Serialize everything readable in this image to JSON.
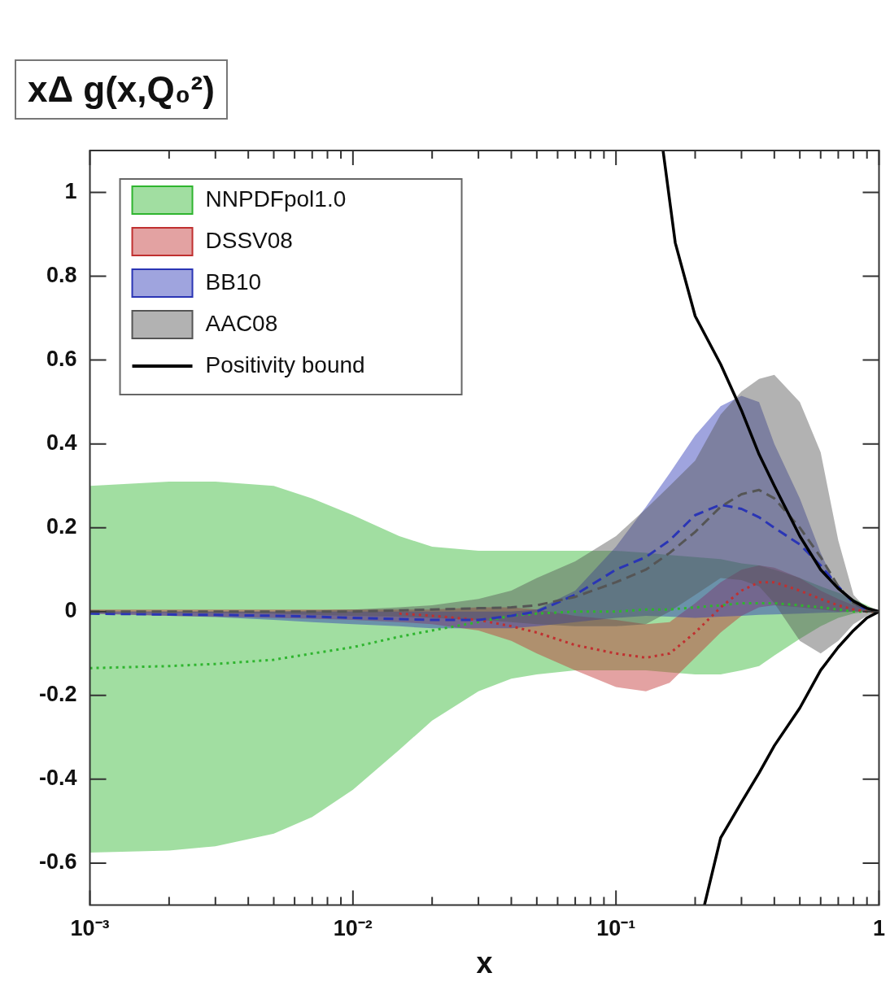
{
  "chart_data": {
    "type": "line",
    "title": "xΔ g(x,Q₀²)",
    "xlabel": "x",
    "log": "x",
    "legend": "top left",
    "marker": "none",
    "grid": false,
    "x": [
      0.001,
      0.002,
      0.003,
      0.005,
      0.007,
      0.01,
      0.015,
      0.02,
      0.03,
      0.04,
      0.05,
      0.07,
      0.1,
      0.13,
      0.16,
      0.2,
      0.25,
      0.3,
      0.35,
      0.4,
      0.5,
      0.6,
      0.7,
      0.8,
      0.9,
      1
    ],
    "xlim": [
      0.001,
      1
    ],
    "ylim": [
      -0.7,
      1.1
    ],
    "xticks": [
      {
        "value": 0.001,
        "label": "10⁻³"
      },
      {
        "value": 0.002,
        "label": null
      },
      {
        "value": 0.003,
        "label": null
      },
      {
        "value": 0.004,
        "label": null
      },
      {
        "value": 0.005,
        "label": null
      },
      {
        "value": 0.006,
        "label": null
      },
      {
        "value": 0.007,
        "label": null
      },
      {
        "value": 0.008,
        "label": null
      },
      {
        "value": 0.009,
        "label": null
      },
      {
        "value": 0.01,
        "label": "10⁻²"
      },
      {
        "value": 0.02,
        "label": null
      },
      {
        "value": 0.03,
        "label": null
      },
      {
        "value": 0.04,
        "label": null
      },
      {
        "value": 0.05,
        "label": null
      },
      {
        "value": 0.06,
        "label": null
      },
      {
        "value": 0.07,
        "label": null
      },
      {
        "value": 0.08,
        "label": null
      },
      {
        "value": 0.09,
        "label": null
      },
      {
        "value": 0.1,
        "label": "10⁻¹"
      },
      {
        "value": 0.2,
        "label": null
      },
      {
        "value": 0.3,
        "label": null
      },
      {
        "value": 0.4,
        "label": null
      },
      {
        "value": 0.5,
        "label": null
      },
      {
        "value": 0.6,
        "label": null
      },
      {
        "value": 0.7,
        "label": null
      },
      {
        "value": 0.8,
        "label": null
      },
      {
        "value": 0.9,
        "label": null
      },
      1
    ],
    "yticks": [
      -0.6,
      -0.4,
      -0.2,
      0,
      0.2,
      0.4,
      0.6,
      0.8,
      1
    ],
    "series": [
      {
        "name": "NNPDFpol1.0",
        "color": "#2fb52f",
        "line_style": "dotted",
        "values": [
          -0.135,
          -0.13,
          -0.125,
          -0.115,
          -0.1,
          -0.085,
          -0.06,
          -0.045,
          -0.025,
          -0.01,
          -0.005,
          0,
          0,
          0.005,
          0.005,
          0.01,
          0.015,
          0.02,
          0.02,
          0.02,
          0.015,
          0.01,
          0.005,
          0,
          0,
          0
        ],
        "upper": [
          0.3,
          0.31,
          0.31,
          0.3,
          0.27,
          0.23,
          0.18,
          0.155,
          0.145,
          0.145,
          0.145,
          0.145,
          0.145,
          0.14,
          0.135,
          0.13,
          0.125,
          0.115,
          0.11,
          0.1,
          0.08,
          0.06,
          0.045,
          0.03,
          0.015,
          0
        ],
        "lower": [
          -0.575,
          -0.57,
          -0.56,
          -0.53,
          -0.49,
          -0.425,
          -0.33,
          -0.26,
          -0.19,
          -0.16,
          -0.15,
          -0.14,
          -0.14,
          -0.14,
          -0.145,
          -0.15,
          -0.15,
          -0.14,
          -0.13,
          -0.105,
          -0.065,
          -0.035,
          -0.015,
          -0.005,
          0,
          0
        ]
      },
      {
        "name": "DSSV08",
        "color": "#c03030",
        "line_style": "dotted",
        "values": [
          null,
          null,
          null,
          null,
          null,
          null,
          -0.005,
          -0.01,
          -0.02,
          -0.035,
          -0.05,
          -0.08,
          -0.1,
          -0.11,
          -0.1,
          -0.05,
          0.01,
          0.05,
          0.07,
          0.07,
          0.05,
          0.03,
          0.015,
          0.005,
          0,
          0
        ],
        "upper": [
          0.005,
          0.005,
          0.005,
          0.005,
          0.005,
          0.005,
          0.005,
          0.005,
          0.01,
          0.01,
          0.005,
          -0.01,
          -0.02,
          -0.03,
          -0.025,
          0.02,
          0.07,
          0.1,
          0.11,
          0.105,
          0.08,
          0.05,
          0.03,
          0.015,
          0.005,
          0
        ],
        "lower": [
          -0.005,
          -0.01,
          -0.012,
          -0.015,
          -0.017,
          -0.02,
          -0.025,
          -0.03,
          -0.045,
          -0.07,
          -0.1,
          -0.14,
          -0.18,
          -0.19,
          -0.17,
          -0.11,
          -0.05,
          -0.01,
          0.01,
          0.015,
          0.01,
          0.005,
          0,
          0,
          0,
          0
        ]
      },
      {
        "name": "BB10",
        "color": "#2a35b5",
        "line_style": "dashed",
        "values": [
          -0.005,
          -0.007,
          -0.008,
          -0.01,
          -0.012,
          -0.015,
          -0.018,
          -0.02,
          -0.02,
          -0.01,
          0,
          0.04,
          0.1,
          0.13,
          0.17,
          0.23,
          0.255,
          0.245,
          0.225,
          0.2,
          0.16,
          0.11,
          0.06,
          0.02,
          0.005,
          0
        ],
        "upper": [
          0,
          0,
          0,
          0,
          0,
          0,
          0,
          0,
          0,
          0,
          0.005,
          0.05,
          0.155,
          0.25,
          0.33,
          0.42,
          0.49,
          0.515,
          0.5,
          0.4,
          0.27,
          0.14,
          0.05,
          0.02,
          0.005,
          0
        ],
        "lower": [
          -0.005,
          -0.01,
          -0.013,
          -0.02,
          -0.025,
          -0.03,
          -0.035,
          -0.04,
          -0.04,
          -0.04,
          -0.035,
          -0.025,
          -0.015,
          -0.01,
          -0.012,
          -0.015,
          -0.012,
          -0.01,
          -0.008,
          -0.007,
          -0.005,
          -0.003,
          -0.002,
          0,
          0,
          0
        ]
      },
      {
        "name": "AAC08",
        "color": "#555555",
        "line_style": "dashed",
        "values": [
          0,
          0,
          0,
          0,
          0,
          0,
          0.003,
          0.005,
          0.008,
          0.01,
          0.015,
          0.035,
          0.07,
          0.1,
          0.14,
          0.19,
          0.25,
          0.28,
          0.29,
          0.27,
          0.2,
          0.13,
          0.06,
          0.02,
          0.005,
          0
        ],
        "upper": [
          0,
          0,
          0,
          0,
          0.003,
          0.005,
          0.01,
          0.015,
          0.03,
          0.05,
          0.08,
          0.12,
          0.18,
          0.245,
          0.3,
          0.36,
          0.47,
          0.525,
          0.555,
          0.565,
          0.5,
          0.38,
          0.17,
          0.04,
          0.005,
          0
        ],
        "lower": [
          0,
          -0.002,
          -0.003,
          -0.005,
          -0.008,
          -0.01,
          -0.012,
          -0.015,
          -0.02,
          -0.025,
          -0.03,
          -0.035,
          -0.035,
          -0.03,
          0,
          0.04,
          0.08,
          0.075,
          0.06,
          0.02,
          -0.07,
          -0.1,
          -0.07,
          -0.03,
          -0.01,
          0
        ]
      },
      {
        "name": "Positivity bound",
        "color": "#000000",
        "line_style": "solid",
        "x": [
          0.151,
          0.168,
          0.2,
          0.25,
          0.3,
          0.35,
          0.4,
          0.5,
          0.6,
          0.7,
          0.8,
          0.9,
          1
        ],
        "values": [
          1.1,
          0.88,
          0.705,
          0.59,
          0.48,
          0.375,
          0.3,
          0.18,
          0.1,
          0.055,
          0.025,
          0.008,
          0
        ]
      },
      {
        "color": "#000000",
        "line_style": "solid",
        "x": [
          0.217,
          0.25,
          0.3,
          0.35,
          0.4,
          0.5,
          0.6,
          0.7,
          0.8,
          0.9,
          1
        ],
        "values": [
          -0.7,
          -0.54,
          -0.455,
          -0.385,
          -0.32,
          -0.23,
          -0.14,
          -0.085,
          -0.045,
          -0.015,
          0
        ]
      }
    ]
  }
}
